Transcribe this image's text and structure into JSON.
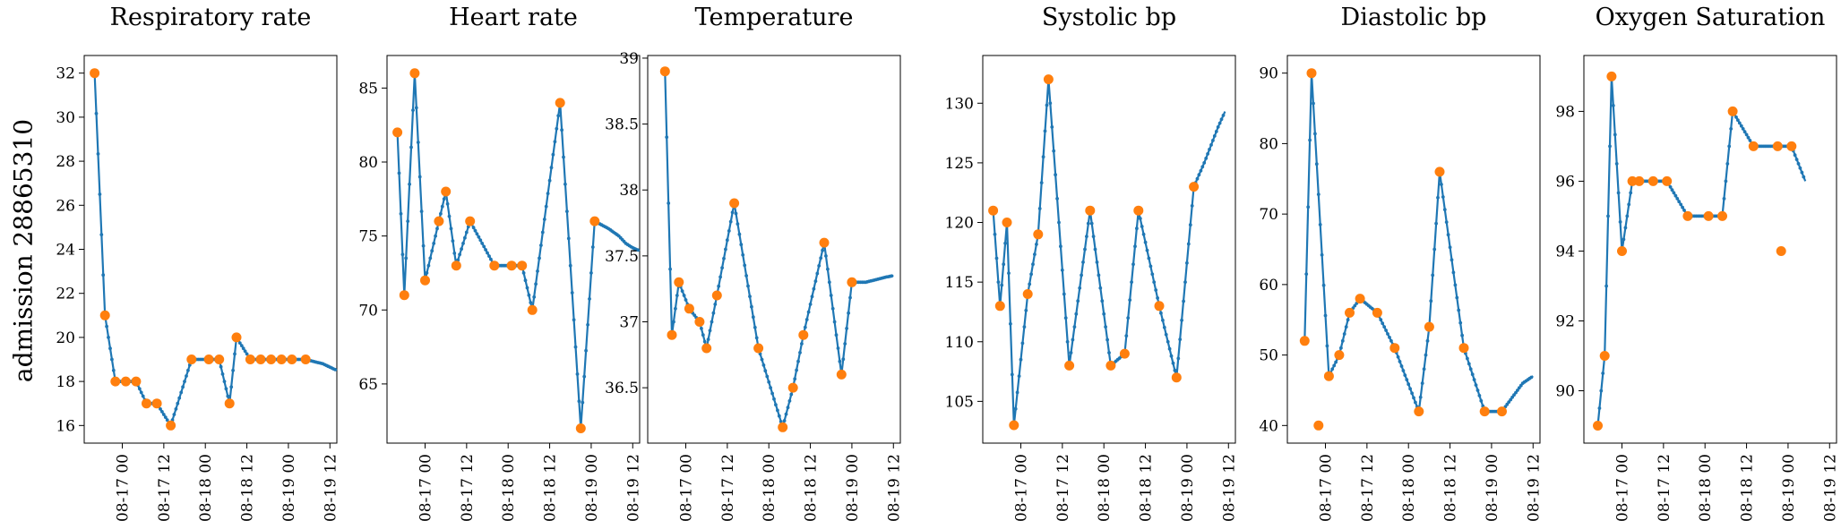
{
  "figure": {
    "row_label": "admission 28865310"
  },
  "chart_data": [
    {
      "type": "line",
      "title": "Respiratory rate",
      "xlabel": "",
      "ylabel": "",
      "x_ticks": [
        "08-17 00",
        "08-17 12",
        "08-18 00",
        "08-18 12",
        "08-19 00",
        "08-19 12"
      ],
      "x_range": [
        -11,
        62
      ],
      "y_ticks": [
        16,
        18,
        20,
        22,
        24,
        26,
        28,
        30,
        32
      ],
      "ylim": [
        15.2,
        32.8
      ],
      "series": [
        {
          "kind": "interpolated",
          "color": "#1f77b4",
          "x": [
            -8,
            -5,
            -2,
            1,
            4,
            7,
            10,
            14,
            20,
            25,
            28,
            31,
            33,
            37,
            40,
            43,
            46,
            49,
            53,
            58,
            62
          ],
          "y": [
            32,
            21,
            18,
            18,
            18,
            17,
            17,
            16,
            19,
            19,
            19,
            17,
            20,
            19,
            19,
            19,
            19,
            19,
            19,
            18.8,
            18.5
          ]
        },
        {
          "kind": "observed",
          "color": "#ff7f0e",
          "x": [
            -8,
            -5,
            -2,
            1,
            4,
            7,
            10,
            14,
            20,
            25,
            28,
            31,
            33,
            37,
            40,
            43,
            46,
            49,
            53
          ],
          "y": [
            32,
            21,
            18,
            18,
            18,
            17,
            17,
            16,
            19,
            19,
            19,
            17,
            20,
            19,
            19,
            19,
            19,
            19,
            19
          ]
        }
      ]
    },
    {
      "type": "line",
      "title": "Heart rate",
      "xlabel": "",
      "ylabel": "",
      "x_ticks": [
        "08-17 00",
        "08-17 12",
        "08-18 00",
        "08-18 12",
        "08-19 00",
        "08-19 12"
      ],
      "x_range": [
        -11,
        62
      ],
      "y_ticks": [
        65,
        70,
        75,
        80,
        85
      ],
      "ylim": [
        61,
        87.2
      ],
      "series": [
        {
          "kind": "interpolated",
          "color": "#1f77b4",
          "x": [
            -8,
            -6,
            -3,
            0,
            4,
            6,
            9,
            13,
            20,
            25,
            28,
            31,
            39,
            45,
            49,
            53,
            56,
            58,
            60,
            62
          ],
          "y": [
            82,
            71,
            86,
            72,
            76,
            78,
            73,
            76,
            73,
            73,
            73,
            70,
            84,
            62,
            76,
            75.5,
            75,
            74.5,
            74.2,
            74
          ]
        },
        {
          "kind": "observed",
          "color": "#ff7f0e",
          "x": [
            -8,
            -6,
            -3,
            0,
            4,
            6,
            9,
            13,
            20,
            25,
            28,
            31,
            39,
            45,
            49
          ],
          "y": [
            82,
            71,
            86,
            72,
            76,
            78,
            73,
            76,
            73,
            73,
            73,
            70,
            84,
            62,
            76
          ]
        }
      ]
    },
    {
      "type": "line",
      "title": "Temperature",
      "xlabel": "",
      "ylabel": "",
      "x_ticks": [
        "08-17 00",
        "08-17 12",
        "08-18 00",
        "08-18 12",
        "08-19 00",
        "08-19 12"
      ],
      "x_range": [
        -11,
        62
      ],
      "y_ticks": [
        36.5,
        37.0,
        37.5,
        38.0,
        38.5,
        39.0
      ],
      "ylim": [
        36.08,
        39.02
      ],
      "series": [
        {
          "kind": "interpolated",
          "color": "#1f77b4",
          "x": [
            -6,
            -4,
            -2,
            1,
            4,
            6,
            9,
            14,
            21,
            28,
            31,
            34,
            40,
            45,
            48,
            50,
            52,
            55,
            58,
            60
          ],
          "y": [
            38.9,
            36.9,
            37.3,
            37.1,
            37.0,
            36.8,
            37.2,
            37.9,
            36.8,
            36.2,
            36.5,
            36.9,
            37.6,
            36.6,
            37.3,
            37.3,
            37.3,
            37.32,
            37.34,
            37.35
          ]
        },
        {
          "kind": "observed",
          "color": "#ff7f0e",
          "x": [
            -6,
            -4,
            -2,
            1,
            4,
            6,
            9,
            14,
            21,
            28,
            31,
            34,
            40,
            45,
            48
          ],
          "y": [
            38.9,
            36.9,
            37.3,
            37.1,
            37.0,
            36.8,
            37.2,
            37.9,
            36.8,
            36.2,
            36.5,
            36.9,
            37.6,
            36.6,
            37.3
          ]
        }
      ]
    },
    {
      "type": "line",
      "title": "Systolic bp",
      "xlabel": "",
      "ylabel": "",
      "x_ticks": [
        "08-17 00",
        "08-17 12",
        "08-18 00",
        "08-18 12",
        "08-19 00",
        "08-19 12"
      ],
      "x_range": [
        -11,
        62
      ],
      "y_ticks": [
        105,
        110,
        115,
        120,
        125,
        130
      ],
      "ylim": [
        101.5,
        134
      ],
      "series": [
        {
          "kind": "interpolated",
          "color": "#1f77b4",
          "x": [
            -8,
            -6,
            -4,
            -2,
            2,
            5,
            8,
            14,
            20,
            26,
            30,
            34,
            40,
            45,
            50,
            53,
            55,
            57,
            59
          ],
          "y": [
            121,
            113,
            120,
            103,
            114,
            119,
            132,
            108,
            121,
            108,
            109,
            121,
            113,
            107,
            123,
            125,
            126.5,
            128,
            129.3
          ]
        },
        {
          "kind": "observed",
          "color": "#ff7f0e",
          "x": [
            -8,
            -6,
            -4,
            -2,
            2,
            5,
            8,
            14,
            20,
            26,
            30,
            34,
            40,
            45,
            50
          ],
          "y": [
            121,
            113,
            120,
            103,
            114,
            119,
            132,
            108,
            121,
            108,
            109,
            121,
            113,
            107,
            123
          ]
        }
      ]
    },
    {
      "type": "line",
      "title": "Diastolic bp",
      "xlabel": "",
      "ylabel": "",
      "x_ticks": [
        "08-17 00",
        "08-17 12",
        "08-18 00",
        "08-18 12",
        "08-19 00",
        "08-19 12"
      ],
      "x_range": [
        -11,
        62
      ],
      "y_ticks": [
        40,
        50,
        60,
        70,
        80,
        90
      ],
      "ylim": [
        37.5,
        92.5
      ],
      "series": [
        {
          "kind": "interpolated",
          "color": "#1f77b4",
          "x": [
            -6,
            -4,
            1,
            4,
            7,
            10,
            15,
            20,
            27,
            30,
            33,
            40,
            46,
            51,
            54,
            57,
            60
          ],
          "y": [
            52,
            90,
            47,
            50,
            56,
            58,
            56,
            51,
            42,
            54,
            76,
            51,
            42,
            42,
            44,
            46,
            47
          ]
        },
        {
          "kind": "observed",
          "color": "#ff7f0e",
          "x": [
            -6,
            -4,
            -2,
            1,
            4,
            7,
            10,
            15,
            20,
            27,
            30,
            33,
            40,
            46,
            51
          ],
          "y": [
            52,
            90,
            40,
            47,
            50,
            56,
            58,
            56,
            51,
            42,
            54,
            76,
            51,
            42,
            42
          ]
        }
      ]
    },
    {
      "type": "line",
      "title": "Oxygen Saturation",
      "xlabel": "",
      "ylabel": "",
      "x_ticks": [
        "08-17 00",
        "08-17 12",
        "08-18 00",
        "08-18 12",
        "08-19 00",
        "08-19 12"
      ],
      "x_range": [
        -11,
        62
      ],
      "y_ticks": [
        90,
        92,
        94,
        96,
        98
      ],
      "ylim": [
        88.5,
        99.6
      ],
      "series": [
        {
          "kind": "interpolated",
          "color": "#1f77b4",
          "x": [
            -7,
            -5,
            -3,
            0,
            3,
            5,
            9,
            13,
            19,
            25,
            29,
            32,
            38,
            45,
            49,
            53
          ],
          "y": [
            89,
            91,
            99,
            94,
            96,
            96,
            96,
            96,
            95,
            95,
            95,
            98,
            97,
            97,
            97,
            96
          ]
        },
        {
          "kind": "observed",
          "color": "#ff7f0e",
          "x": [
            -7,
            -5,
            -3,
            0,
            3,
            5,
            9,
            13,
            19,
            25,
            29,
            32,
            38,
            45,
            46,
            49
          ],
          "y": [
            89,
            91,
            99,
            94,
            96,
            96,
            96,
            96,
            95,
            95,
            95,
            98,
            97,
            97,
            94,
            97
          ]
        }
      ]
    }
  ]
}
